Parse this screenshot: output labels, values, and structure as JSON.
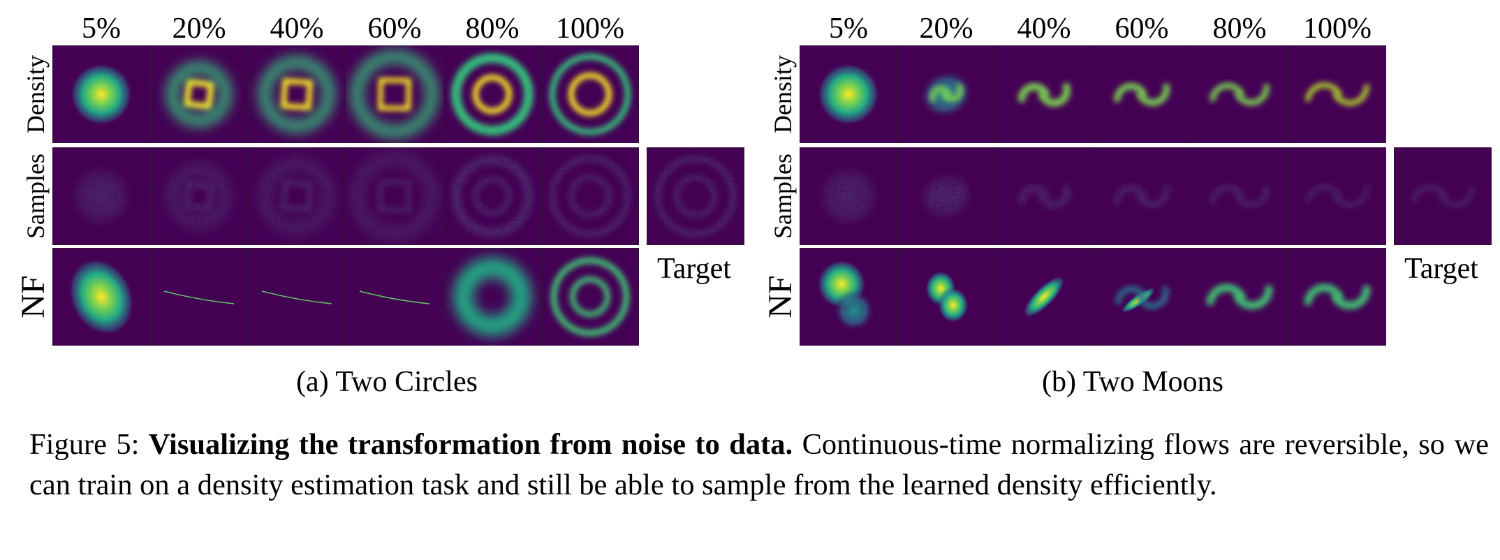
{
  "panels": [
    {
      "column_labels": [
        "5%",
        "20%",
        "40%",
        "60%",
        "80%",
        "100%"
      ],
      "row_labels": [
        "Density",
        "Samples",
        "NF"
      ],
      "target_label": "Target",
      "subcaption": "(a) Two Circles"
    },
    {
      "column_labels": [
        "5%",
        "20%",
        "40%",
        "60%",
        "80%",
        "100%"
      ],
      "row_labels": [
        "Density",
        "Samples",
        "NF"
      ],
      "target_label": "Target",
      "subcaption": "(b) Two Moons"
    }
  ],
  "caption": {
    "label": "Figure 5:",
    "title": "Visualizing the transformation from noise to data.",
    "text": "Continuous-time normalizing flows are reversible, so we can train on a density estimation task and still be able to sample from the learned density efficiently."
  }
}
